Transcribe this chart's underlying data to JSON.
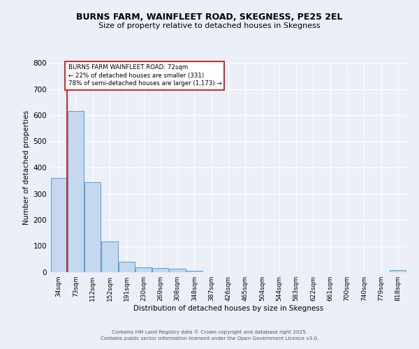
{
  "title_line1": "BURNS FARM, WAINFLEET ROAD, SKEGNESS, PE25 2EL",
  "title_line2": "Size of property relative to detached houses in Skegness",
  "xlabel": "Distribution of detached houses by size in Skegness",
  "ylabel": "Number of detached properties",
  "categories": [
    "34sqm",
    "73sqm",
    "112sqm",
    "152sqm",
    "191sqm",
    "230sqm",
    "269sqm",
    "308sqm",
    "348sqm",
    "387sqm",
    "426sqm",
    "465sqm",
    "504sqm",
    "544sqm",
    "583sqm",
    "622sqm",
    "661sqm",
    "700sqm",
    "740sqm",
    "779sqm",
    "818sqm"
  ],
  "values": [
    360,
    617,
    345,
    117,
    40,
    20,
    15,
    13,
    6,
    0,
    0,
    0,
    0,
    0,
    0,
    0,
    0,
    0,
    0,
    0,
    7
  ],
  "bar_color": "#c5d8f0",
  "bar_edge_color": "#5b9bd5",
  "background_color": "#eaeff8",
  "grid_color": "#ffffff",
  "annotation_text": "BURNS FARM WAINFLEET ROAD: 72sqm\n← 22% of detached houses are smaller (331)\n78% of semi-detached houses are larger (1,173) →",
  "annotation_box_color": "#ffffff",
  "annotation_box_edge": "#cc0000",
  "annotation_text_color": "#000000",
  "red_line_color": "#cc0000",
  "ylim": [
    0,
    800
  ],
  "yticks": [
    0,
    100,
    200,
    300,
    400,
    500,
    600,
    700,
    800
  ],
  "footer_line1": "Contains HM Land Registry data © Crown copyright and database right 2025.",
  "footer_line2": "Contains public sector information licensed under the Open Government Licence v3.0."
}
